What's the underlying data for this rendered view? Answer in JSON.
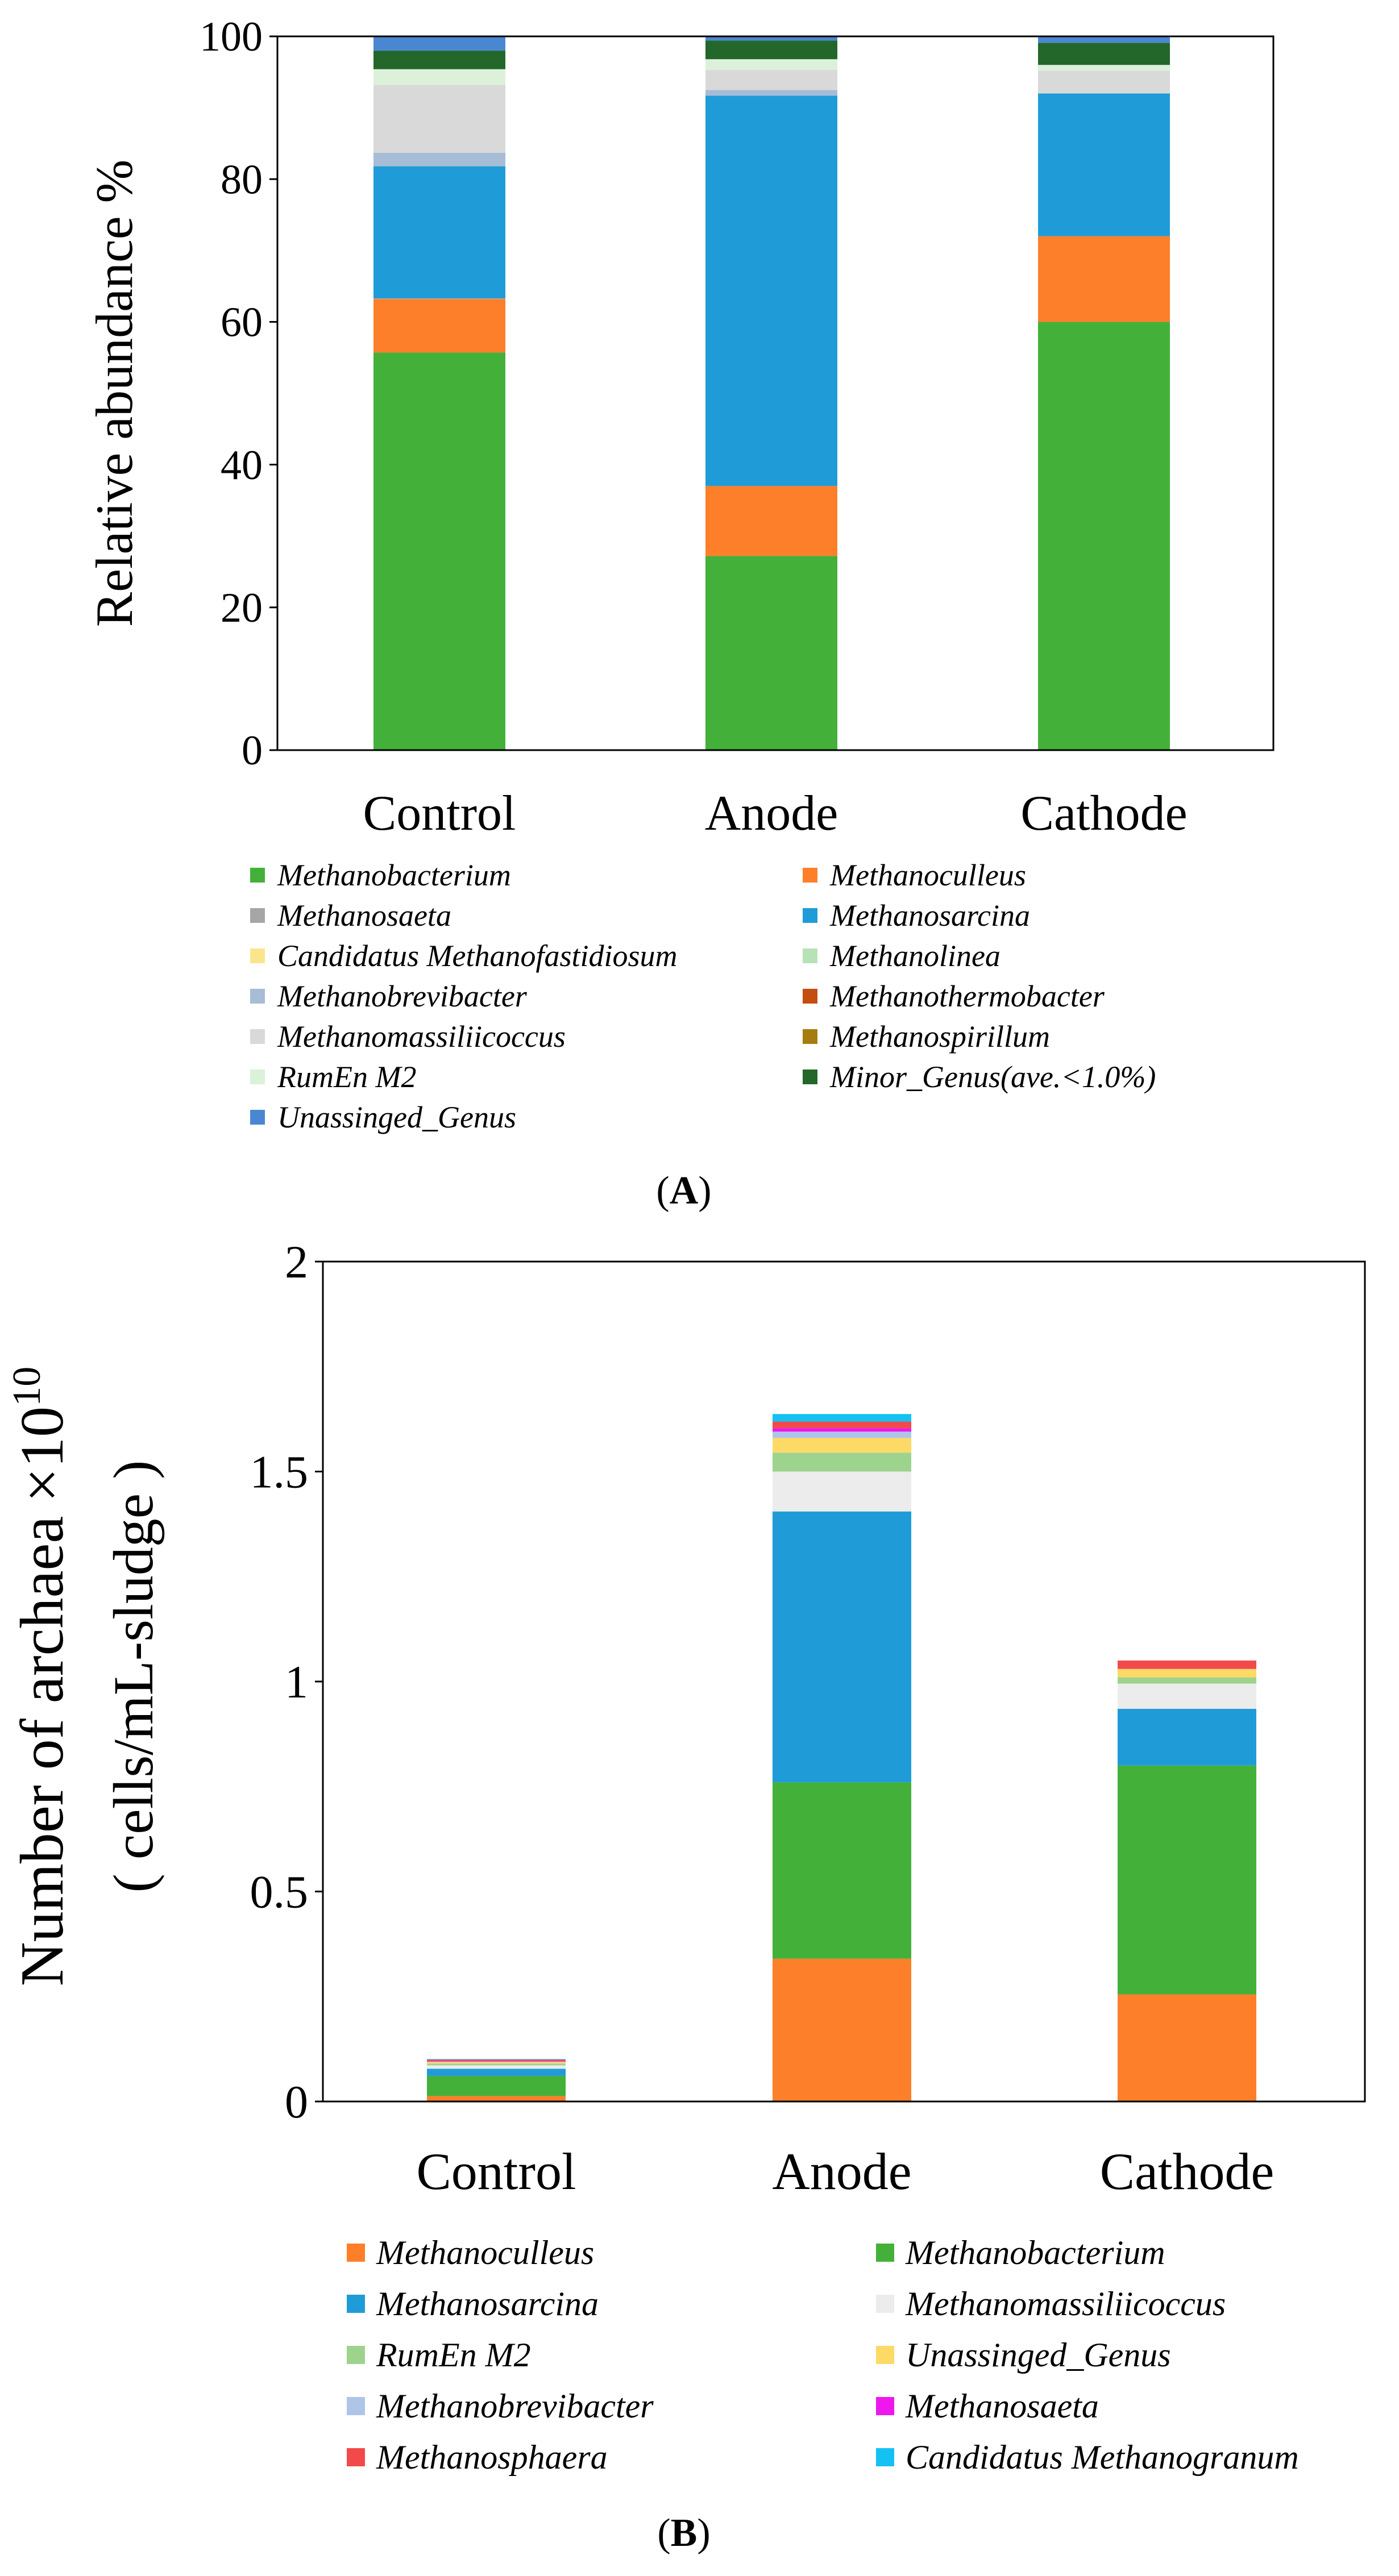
{
  "chart_data": [
    {
      "panel": "A",
      "type": "bar",
      "stacked": true,
      "title": "",
      "xlabel": "",
      "ylabel": "Relative abundance %",
      "ylim": [
        0,
        100
      ],
      "yticks": [
        "0",
        "20",
        "40",
        "60",
        "80",
        "100"
      ],
      "categories": [
        "Control",
        "Anode",
        "Cathode"
      ],
      "series": [
        {
          "name": "Methanobacterium",
          "color": "#43b03a",
          "values": [
            55.7,
            27.2,
            60.0
          ]
        },
        {
          "name": "Methanoculleus",
          "color": "#fd7f29",
          "values": [
            7.5,
            9.8,
            12.0
          ]
        },
        {
          "name": "Methanosaeta",
          "color": "#a6a6a6",
          "values": [
            0.1,
            0.0,
            0.0
          ]
        },
        {
          "name": "Methanosarcina",
          "color": "#1f9cd8",
          "values": [
            18.5,
            54.7,
            20.0
          ]
        },
        {
          "name": "Candidatus Methanofastidiosum",
          "color": "#fbe58c",
          "values": [
            0.0,
            0.0,
            0.0
          ]
        },
        {
          "name": "Methanolinea",
          "color": "#b7e2b6",
          "values": [
            0.0,
            0.0,
            0.0
          ]
        },
        {
          "name": "Methanobrevibacter",
          "color": "#a7bcd6",
          "values": [
            1.9,
            0.8,
            0.0
          ]
        },
        {
          "name": "Methanothermobacter",
          "color": "#c44e10",
          "values": [
            0.0,
            0.0,
            0.0
          ]
        },
        {
          "name": "Methanomassiliicoccus",
          "color": "#d9d9d9",
          "values": [
            9.5,
            2.8,
            3.2
          ]
        },
        {
          "name": "Methanospirillum",
          "color": "#a57d0e",
          "values": [
            0.0,
            0.0,
            0.0
          ]
        },
        {
          "name": "RumEn M2",
          "color": "#dcf1da",
          "values": [
            2.2,
            1.5,
            0.8
          ]
        },
        {
          "name": "Minor_Genus(ave.<1.0%)",
          "color": "#23672a",
          "values": [
            2.6,
            2.6,
            3.1
          ]
        },
        {
          "name": "Unassinged_Genus",
          "color": "#4a87d2",
          "values": [
            2.0,
            0.6,
            0.9
          ]
        }
      ],
      "panel_label": "(A)"
    },
    {
      "panel": "B",
      "type": "bar",
      "stacked": true,
      "title": "",
      "xlabel": "",
      "ylabel_line1": "Number of archaea",
      "ylabel_mult": "×10",
      "ylabel_exp": "10",
      "ylabel_line2": "( cells/mL-sludge )",
      "ylim": [
        0,
        2
      ],
      "yticks": [
        "0",
        "0.5",
        "1",
        "1.5",
        "2"
      ],
      "categories": [
        "Control",
        "Anode",
        "Cathode"
      ],
      "series": [
        {
          "name": "Methanoculleus",
          "color": "#fd7f29",
          "values": [
            0.013,
            0.34,
            0.255
          ]
        },
        {
          "name": "Methanobacterium",
          "color": "#43b03a",
          "values": [
            0.048,
            0.42,
            0.545
          ]
        },
        {
          "name": "Methanosarcina",
          "color": "#1f9cd8",
          "values": [
            0.017,
            0.645,
            0.135
          ]
        },
        {
          "name": "Methanomassiliicoccus",
          "color": "#ececec",
          "values": [
            0.008,
            0.095,
            0.06
          ]
        },
        {
          "name": "RumEn M2",
          "color": "#9dd38d",
          "values": [
            0.004,
            0.045,
            0.015
          ]
        },
        {
          "name": "Unassinged_Genus",
          "color": "#fdd966",
          "values": [
            0.003,
            0.035,
            0.02
          ]
        },
        {
          "name": "Methanobrevibacter",
          "color": "#aec5e8",
          "values": [
            0.002,
            0.015,
            0.0
          ]
        },
        {
          "name": "Methanosaeta",
          "color": "#ee17ee",
          "values": [
            0.001,
            0.008,
            0.0
          ]
        },
        {
          "name": "Methanosphaera",
          "color": "#f24a4a",
          "values": [
            0.004,
            0.016,
            0.02
          ]
        },
        {
          "name": "Candidatus Methanogranum",
          "color": "#14c1f2",
          "values": [
            0.001,
            0.018,
            0.0
          ]
        }
      ],
      "panel_label": "(B)"
    }
  ]
}
